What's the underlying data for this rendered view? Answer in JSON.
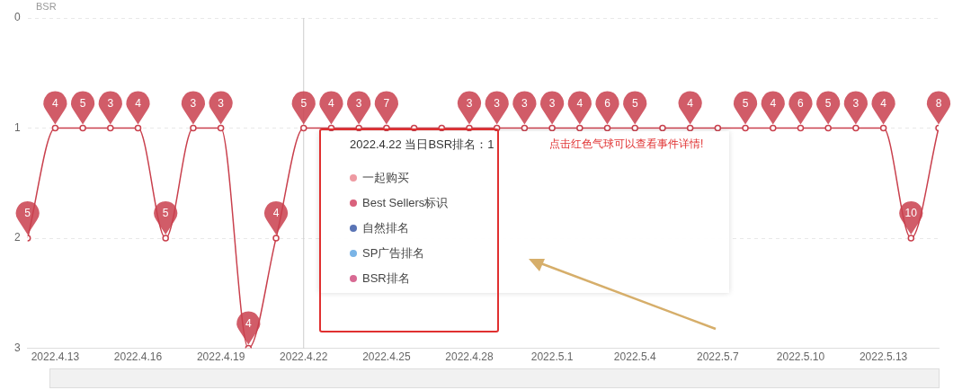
{
  "chart_data": {
    "type": "line",
    "ylabel": "BSR",
    "x": [
      "2022-04-12",
      "2022-04-13",
      "2022-04-14",
      "2022-04-15",
      "2022-04-16",
      "2022-04-17",
      "2022-04-18",
      "2022-04-19",
      "2022-04-20",
      "2022-04-21",
      "2022-04-22",
      "2022-04-23",
      "2022-04-24",
      "2022-04-25",
      "2022-04-26",
      "2022-04-27",
      "2022-04-28",
      "2022-04-29",
      "2022-04-30",
      "2022-05-01",
      "2022-05-02",
      "2022-05-03",
      "2022-05-04",
      "2022-05-05",
      "2022-05-06",
      "2022-05-07",
      "2022-05-08",
      "2022-05-09",
      "2022-05-10",
      "2022-05-11",
      "2022-05-12",
      "2022-05-13",
      "2022-05-14",
      "2022-05-15"
    ],
    "xlim": [
      "2022-04-12",
      "2022-05-15"
    ],
    "xticks": [
      {
        "value": "2022-04-13",
        "label": "2022.4.13"
      },
      {
        "value": "2022-04-16",
        "label": "2022.4.16"
      },
      {
        "value": "2022-04-19",
        "label": "2022.4.19"
      },
      {
        "value": "2022-04-22",
        "label": "2022.4.22"
      },
      {
        "value": "2022-04-25",
        "label": "2022.4.25"
      },
      {
        "value": "2022-04-28",
        "label": "2022.4.28"
      },
      {
        "value": "2022-05-01",
        "label": "2022.5.1"
      },
      {
        "value": "2022-05-04",
        "label": "2022.5.4"
      },
      {
        "value": "2022-05-07",
        "label": "2022.5.7"
      },
      {
        "value": "2022-05-10",
        "label": "2022.5.10"
      },
      {
        "value": "2022-05-13",
        "label": "2022.5.13"
      }
    ],
    "series": [
      {
        "color": "#c9404d",
        "values": [
          2,
          1,
          1,
          1,
          1,
          2,
          1,
          1,
          3,
          2,
          1,
          1,
          1,
          1,
          1,
          1,
          1,
          1,
          1,
          1,
          1,
          1,
          1,
          1,
          1,
          1,
          1,
          1,
          1,
          1,
          1,
          1,
          2,
          1
        ]
      }
    ],
    "ylim": [
      3,
      0
    ],
    "yticks": [
      0,
      1,
      2,
      3
    ],
    "grid": "y",
    "marker": "circle",
    "line_style": "solid",
    "ref_lines": [
      {
        "axis": "x",
        "value": "2022-04-22",
        "color": "#cccccc"
      }
    ],
    "annotations": [
      "2022.4.22 当日BSR排名：1",
      "点击红色气球可以查看事件详情!",
      "一起购买",
      "Best Sellers标识",
      "自然排名",
      "SP广告排名",
      "BSR排名",
      {
        "text": "5",
        "x": "2022-04-12",
        "y": 2
      },
      {
        "text": "4",
        "x": "2022-04-13",
        "y": 1
      },
      {
        "text": "5",
        "x": "2022-04-14",
        "y": 1
      },
      {
        "text": "3",
        "x": "2022-04-15",
        "y": 1
      },
      {
        "text": "4",
        "x": "2022-04-16",
        "y": 1
      },
      {
        "text": "5",
        "x": "2022-04-17",
        "y": 2
      },
      {
        "text": "3",
        "x": "2022-04-18",
        "y": 1
      },
      {
        "text": "3",
        "x": "2022-04-19",
        "y": 1
      },
      {
        "text": "4",
        "x": "2022-04-20",
        "y": 3
      },
      {
        "text": "4",
        "x": "2022-04-21",
        "y": 2
      },
      {
        "text": "5",
        "x": "2022-04-22",
        "y": 1
      },
      {
        "text": "4",
        "x": "2022-04-23",
        "y": 1
      },
      {
        "text": "3",
        "x": "2022-04-24",
        "y": 1
      },
      {
        "text": "7",
        "x": "2022-04-25",
        "y": 1
      },
      {
        "text": "3",
        "x": "2022-04-28",
        "y": 1
      },
      {
        "text": "3",
        "x": "2022-04-29",
        "y": 1
      },
      {
        "text": "3",
        "x": "2022-04-30",
        "y": 1
      },
      {
        "text": "3",
        "x": "2022-05-01",
        "y": 1
      },
      {
        "text": "4",
        "x": "2022-05-02",
        "y": 1
      },
      {
        "text": "6",
        "x": "2022-05-03",
        "y": 1
      },
      {
        "text": "5",
        "x": "2022-05-04",
        "y": 1
      },
      {
        "text": "4",
        "x": "2022-05-06",
        "y": 1
      },
      {
        "text": "5",
        "x": "2022-05-08",
        "y": 1
      },
      {
        "text": "4",
        "x": "2022-05-09",
        "y": 1
      },
      {
        "text": "6",
        "x": "2022-05-10",
        "y": 1
      },
      {
        "text": "5",
        "x": "2022-05-11",
        "y": 1
      },
      {
        "text": "3",
        "x": "2022-05-12",
        "y": 1
      },
      {
        "text": "4",
        "x": "2022-05-13",
        "y": 1
      },
      {
        "text": "10",
        "x": "2022-05-14",
        "y": 2
      },
      {
        "text": "8",
        "x": "2022-05-15",
        "y": 1
      }
    ]
  }
}
